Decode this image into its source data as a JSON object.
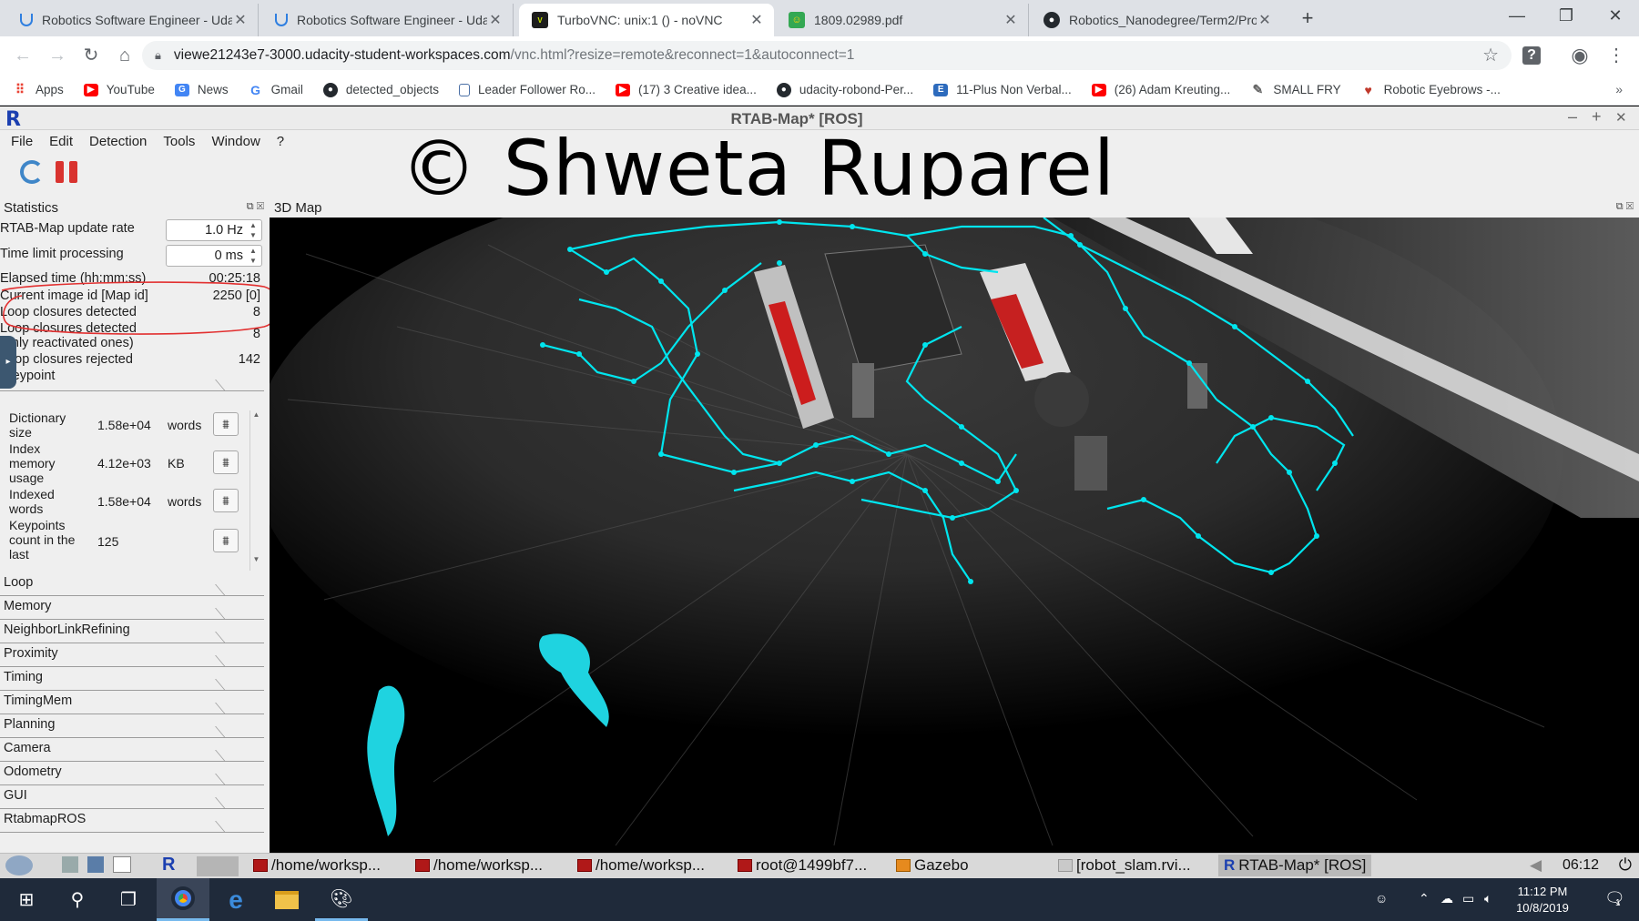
{
  "browser": {
    "tabs": [
      {
        "label": "Robotics Software Engineer - Uda",
        "icon": "udacity-icon",
        "active": false
      },
      {
        "label": "Robotics Software Engineer - Uda",
        "icon": "udacity-icon",
        "active": false
      },
      {
        "label": "TurboVNC: unix:1 () - noVNC",
        "icon": "vnc-icon",
        "active": true
      },
      {
        "label": "1809.02989.pdf",
        "icon": "pdf-icon",
        "active": false
      },
      {
        "label": "Robotics_Nanodegree/Term2/Pro",
        "icon": "github-icon",
        "active": false
      }
    ],
    "new_tab": "+",
    "window_controls": {
      "minimize": "—",
      "maximize": "❐",
      "close": "✕"
    },
    "address": {
      "host": "viewe21243e7-3000.udacity-student-workspaces.com",
      "path": "/vnc.html?resize=remote&reconnect=1&autoconnect=1"
    },
    "bookmarks": [
      {
        "label": "Apps",
        "icon": "apps-icon",
        "color": "#ea4335"
      },
      {
        "label": "YouTube",
        "icon": "youtube-icon",
        "color": "#ff0000"
      },
      {
        "label": "News",
        "icon": "news-icon",
        "color": "#4285f4"
      },
      {
        "label": "Gmail",
        "icon": "google-icon",
        "color": "#ea4335"
      },
      {
        "label": "detected_objects",
        "icon": "github-icon",
        "color": "#24292e"
      },
      {
        "label": "Leader Follower Ro...",
        "icon": "document-icon",
        "color": "#4a6fa5"
      },
      {
        "label": "(17) 3 Creative idea...",
        "icon": "youtube-icon",
        "color": "#ff0000"
      },
      {
        "label": "udacity-robond-Per...",
        "icon": "github-icon",
        "color": "#24292e"
      },
      {
        "label": "11-Plus Non Verbal...",
        "icon": "site-icon",
        "color": "#2d6bbd"
      },
      {
        "label": "(26) Adam Kreuting...",
        "icon": "youtube-icon",
        "color": "#ff0000"
      },
      {
        "label": "SMALL FRY",
        "icon": "feather-icon",
        "color": "#666666"
      },
      {
        "label": "Robotic Eyebrows -...",
        "icon": "eyebrows-icon",
        "color": "#c0392b"
      }
    ],
    "more": "»"
  },
  "rtab": {
    "title": "RTAB-Map* [ROS]",
    "logo": "R",
    "window_buttons": {
      "minimize": "–",
      "maximize": "+",
      "close": "✕"
    },
    "menu": [
      "File",
      "Edit",
      "Detection",
      "Tools",
      "Window",
      "?"
    ],
    "watermark": "© Shweta Ruparel",
    "statistics": {
      "title": "Statistics",
      "update_rate": {
        "label": "RTAB-Map update rate",
        "value": "1.0 Hz"
      },
      "time_limit": {
        "label": "Time limit processing",
        "value": "0 ms"
      },
      "rows": [
        {
          "label": "Elapsed time (hh:mm:ss)",
          "value": "00:25:18"
        },
        {
          "label": "Current image id [Map id]",
          "value": "2250 [0]"
        },
        {
          "label": "Loop closures detected",
          "value": "8"
        },
        {
          "label": "Loop closures detected (only reactivated ones)",
          "label1": "Loop closures detected",
          "label2": "(only reactivated ones)",
          "value": "8"
        },
        {
          "label": "Loop closures rejected",
          "value": "142"
        }
      ],
      "keypoint": {
        "title": "Keypoint",
        "items": [
          {
            "label": "Dictionary size",
            "label1": "Dictionary",
            "label2": "size",
            "value": "1.58e+04",
            "unit": "words"
          },
          {
            "label": "Index memory usage",
            "label1": "Index",
            "label2": "memory",
            "label3": "usage",
            "value": "4.12e+03",
            "unit": "KB"
          },
          {
            "label": "Indexed words",
            "label1": "Indexed",
            "label2": "words",
            "value": "1.58e+04",
            "unit": "words"
          },
          {
            "label": "Keypoints count in the last",
            "label1": "Keypoints",
            "label2": "count in the",
            "label3": "last",
            "value": "125",
            "unit": ""
          }
        ]
      },
      "sections": [
        "Loop",
        "Memory",
        "NeighborLinkRefining",
        "Proximity",
        "Timing",
        "TimingMem",
        "Planning",
        "Camera",
        "Odometry",
        "GUI",
        "RtabmapROS"
      ]
    },
    "map": {
      "title": "3D Map",
      "path_color": "#00e5ee"
    }
  },
  "vnc_panel": {
    "items": [
      "/home/worksp...",
      "/home/worksp...",
      "/home/worksp...",
      "root@1499bf7...",
      "Gazebo",
      "[robot_slam.rvi...",
      "RTAB-Map* [ROS]"
    ],
    "clock": "06:12"
  },
  "windows": {
    "time": "11:12 PM",
    "date": "10/8/2019",
    "notifications": "1"
  }
}
